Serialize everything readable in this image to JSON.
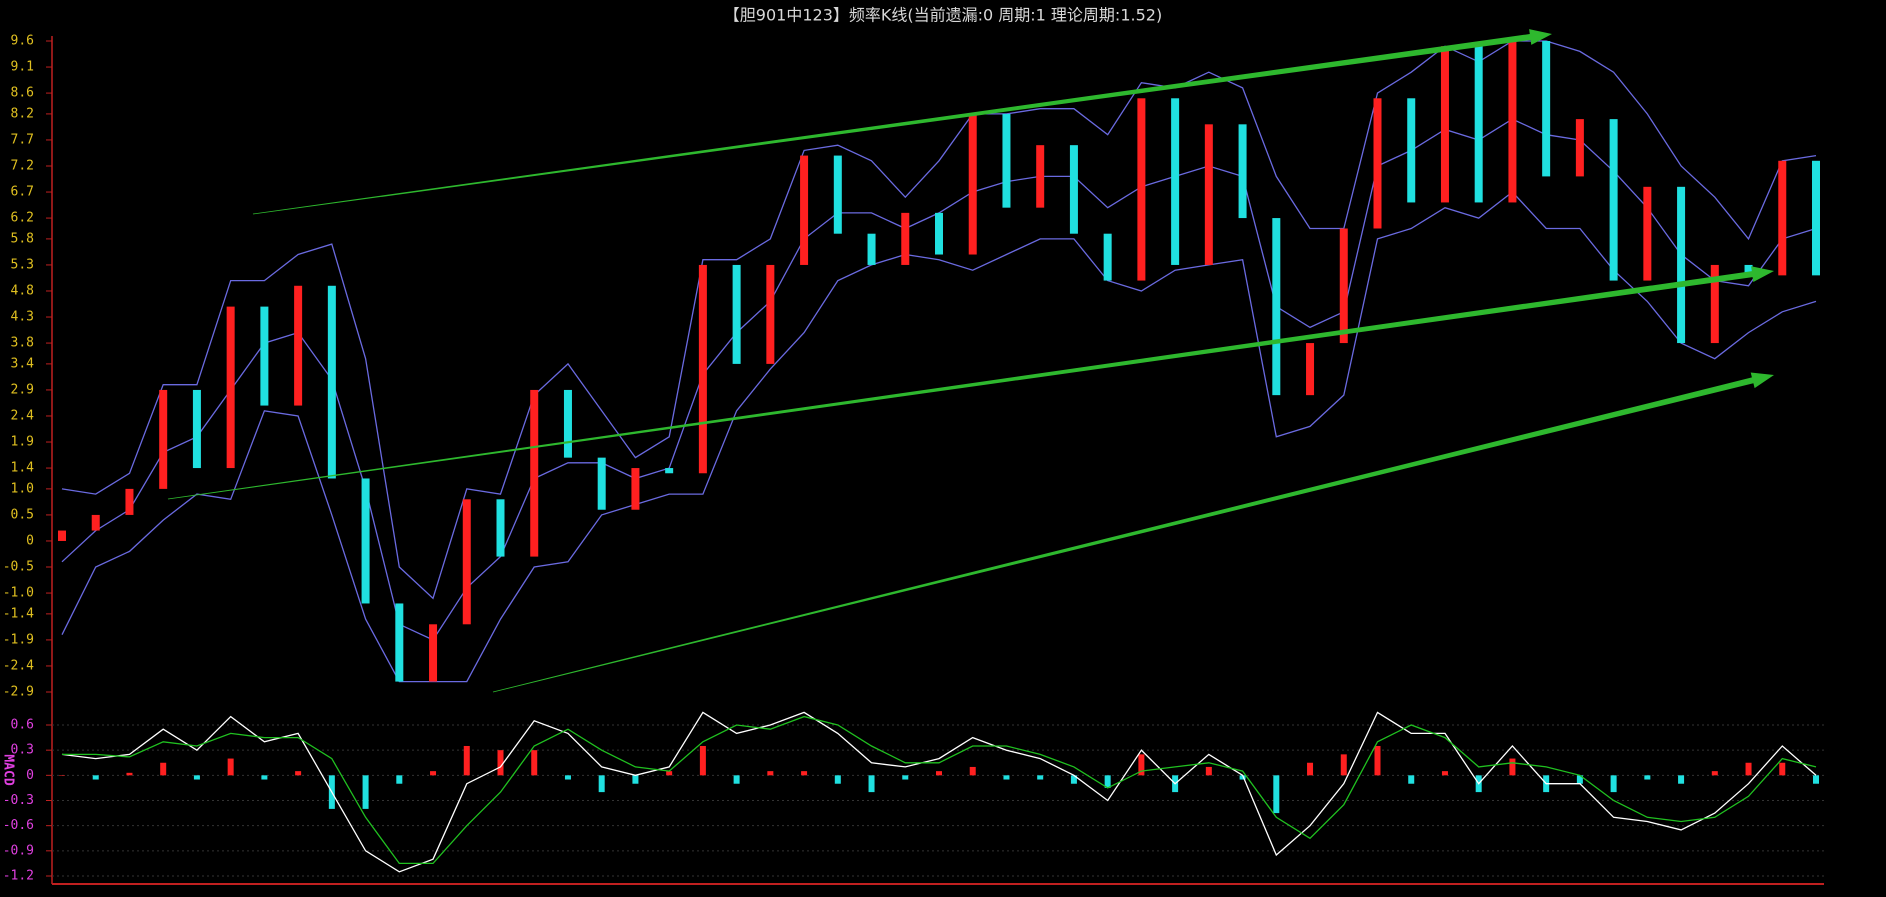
{
  "chart_data": {
    "type": "candlestick",
    "title": "【胆901中123】频率K线(当前遗漏:0 周期:1 理论周期:1.52)",
    "open": [
      0.0,
      0.2,
      0.5,
      1.0,
      2.9,
      1.4,
      4.5,
      2.6,
      4.9,
      1.2,
      -1.2,
      -2.7,
      -1.6,
      0.8,
      -0.3,
      2.9,
      1.6,
      0.6,
      1.4,
      1.3,
      5.3,
      3.4,
      5.3,
      7.4,
      5.9,
      5.3,
      6.3,
      5.5,
      8.2,
      6.4,
      7.6,
      5.9,
      5.0,
      8.5,
      5.3,
      8.0,
      6.2,
      2.8,
      3.8,
      6.0,
      8.5,
      6.5,
      9.5,
      6.5,
      9.6,
      7.0,
      8.1,
      5.0,
      6.8,
      3.8,
      5.3,
      5.1,
      7.3
    ],
    "close": [
      0.2,
      0.5,
      1.0,
      2.9,
      1.4,
      4.5,
      2.6,
      4.9,
      1.2,
      -1.2,
      -2.7,
      -1.6,
      0.8,
      -0.3,
      2.9,
      1.6,
      0.6,
      1.4,
      1.3,
      5.3,
      3.4,
      5.3,
      7.4,
      5.9,
      5.3,
      6.3,
      5.5,
      8.2,
      6.4,
      7.6,
      5.9,
      5.0,
      8.5,
      5.3,
      8.0,
      6.2,
      2.8,
      3.8,
      6.0,
      8.5,
      6.5,
      9.5,
      6.5,
      9.6,
      7.0,
      8.1,
      5.0,
      6.8,
      3.8,
      5.3,
      5.1,
      7.3,
      5.1
    ],
    "up_color": "#ff2020",
    "down_color": "#20e0e0",
    "bands": [
      {
        "name": "upper",
        "color": "#6a6ae0",
        "values": [
          1.0,
          0.9,
          1.3,
          3.0,
          3.0,
          5.0,
          5.0,
          5.5,
          5.7,
          3.5,
          -0.5,
          -1.1,
          1.0,
          0.9,
          2.8,
          3.4,
          2.5,
          1.6,
          2.0,
          5.4,
          5.4,
          5.8,
          7.5,
          7.6,
          7.3,
          6.6,
          7.3,
          8.2,
          8.2,
          8.3,
          8.3,
          7.8,
          8.8,
          8.7,
          9.0,
          8.7,
          7.0,
          6.0,
          6.0,
          8.6,
          9.0,
          9.5,
          9.2,
          9.6,
          9.6,
          9.4,
          9.0,
          8.2,
          7.2,
          6.6,
          5.8,
          7.3,
          7.4
        ]
      },
      {
        "name": "middle",
        "color": "#6a6ae0",
        "values": [
          -0.4,
          0.2,
          0.6,
          1.7,
          2.0,
          2.9,
          3.8,
          4.0,
          3.1,
          1.0,
          -1.6,
          -1.9,
          -0.9,
          -0.3,
          1.2,
          1.5,
          1.5,
          1.2,
          1.4,
          3.2,
          4.0,
          4.6,
          5.8,
          6.3,
          6.3,
          6.0,
          6.3,
          6.7,
          6.9,
          7.0,
          7.0,
          6.4,
          6.8,
          7.0,
          7.2,
          7.0,
          4.5,
          4.1,
          4.4,
          7.2,
          7.5,
          7.9,
          7.7,
          8.1,
          7.8,
          7.7,
          7.1,
          6.4,
          5.5,
          5.0,
          4.9,
          5.8,
          6.0
        ]
      },
      {
        "name": "lower",
        "color": "#6a6ae0",
        "values": [
          -1.8,
          -0.5,
          -0.2,
          0.4,
          0.9,
          0.8,
          2.5,
          2.4,
          0.5,
          -1.5,
          -2.7,
          -2.7,
          -2.7,
          -1.5,
          -0.5,
          -0.4,
          0.5,
          0.7,
          0.9,
          0.9,
          2.5,
          3.3,
          4.0,
          5.0,
          5.3,
          5.5,
          5.4,
          5.2,
          5.5,
          5.8,
          5.8,
          5.0,
          4.8,
          5.2,
          5.3,
          5.4,
          2.0,
          2.2,
          2.8,
          5.8,
          6.0,
          6.4,
          6.2,
          6.7,
          6.0,
          6.0,
          5.2,
          4.6,
          3.8,
          3.5,
          4.0,
          4.4,
          4.6
        ]
      }
    ],
    "ylim": [
      -2.9,
      9.6
    ],
    "yticks": [
      9.6,
      9.1,
      8.6,
      8.2,
      7.7,
      7.2,
      6.7,
      6.2,
      5.8,
      5.3,
      4.8,
      4.3,
      3.8,
      3.4,
      2.9,
      2.4,
      1.9,
      1.4,
      {
        "value": 1,
        "label": "1.0"
      },
      0.5,
      0,
      -0.5,
      {
        "value": -1,
        "label": "-1.0"
      },
      -1.4,
      -1.9,
      -2.4,
      -2.9
    ],
    "macd": {
      "label": "MACD",
      "ylim": [
        -1.2,
        0.6
      ],
      "yticks": [
        0.6,
        0.3,
        0,
        -0.3,
        -0.6,
        -0.9,
        -1.2
      ],
      "series": [
        {
          "name": "DIF",
          "color": "#ffffff",
          "values": [
            0.25,
            0.2,
            0.25,
            0.55,
            0.3,
            0.7,
            0.4,
            0.5,
            -0.2,
            -0.9,
            -1.15,
            -1.0,
            -0.1,
            0.1,
            0.65,
            0.5,
            0.1,
            0.0,
            0.1,
            0.75,
            0.5,
            0.6,
            0.75,
            0.5,
            0.15,
            0.1,
            0.2,
            0.45,
            0.3,
            0.2,
            0.0,
            -0.3,
            0.3,
            -0.1,
            0.25,
            0.0,
            -0.95,
            -0.6,
            -0.1,
            0.75,
            0.5,
            0.5,
            -0.1,
            0.35,
            -0.1,
            -0.1,
            -0.5,
            -0.55,
            -0.65,
            -0.45,
            -0.1,
            0.35,
            0.0
          ]
        },
        {
          "name": "DEA",
          "color": "#20c020",
          "values": [
            0.25,
            0.25,
            0.22,
            0.4,
            0.35,
            0.5,
            0.45,
            0.45,
            0.2,
            -0.5,
            -1.05,
            -1.05,
            -0.6,
            -0.2,
            0.35,
            0.55,
            0.3,
            0.1,
            0.05,
            0.4,
            0.6,
            0.55,
            0.7,
            0.6,
            0.35,
            0.15,
            0.15,
            0.35,
            0.35,
            0.25,
            0.1,
            -0.15,
            0.05,
            0.1,
            0.15,
            0.05,
            -0.5,
            -0.75,
            -0.35,
            0.4,
            0.6,
            0.45,
            0.1,
            0.15,
            0.1,
            0.0,
            -0.3,
            -0.5,
            -0.55,
            -0.5,
            -0.25,
            0.2,
            0.1
          ]
        }
      ],
      "histogram": [
        0,
        -0.05,
        0.03,
        0.15,
        -0.05,
        0.2,
        -0.05,
        0.05,
        -0.4,
        -0.4,
        -0.1,
        0.05,
        0.35,
        0.3,
        0.3,
        -0.05,
        -0.2,
        -0.1,
        0.05,
        0.35,
        -0.1,
        0.05,
        0.05,
        -0.1,
        -0.2,
        -0.05,
        0.05,
        0.1,
        -0.05,
        -0.05,
        -0.1,
        -0.15,
        0.25,
        -0.2,
        0.1,
        -0.05,
        -0.45,
        0.15,
        0.25,
        0.35,
        -0.1,
        0.05,
        -0.2,
        0.2,
        -0.2,
        -0.1,
        -0.2,
        -0.05,
        -0.1,
        0.05,
        0.15,
        0.15,
        -0.1
      ]
    }
  }
}
